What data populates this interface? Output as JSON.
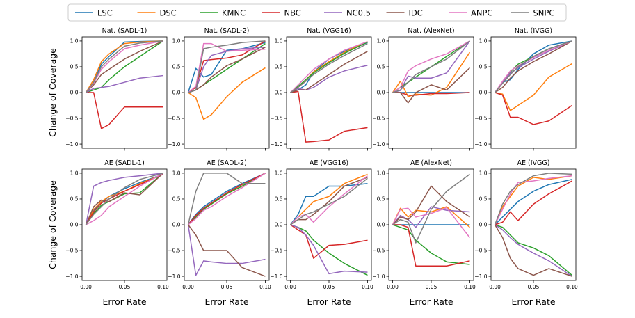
{
  "chart_data": {
    "type": "line",
    "ylabel": "Change of Coverage",
    "xlabel": "Error Rate",
    "xlim": [
      -0.005,
      0.105
    ],
    "ylim": [
      -1.08,
      1.08
    ],
    "xticks": [
      0.0,
      0.05,
      0.1
    ],
    "xtick_labels": [
      "0.00",
      "0.05",
      "0.10"
    ],
    "yticks": [
      -1.0,
      -0.5,
      0.0,
      0.5,
      1.0
    ],
    "ytick_labels": [
      "−1.0",
      "−0.5",
      "0.0",
      "0.5",
      "1.0"
    ],
    "x": [
      0,
      0.01,
      0.02,
      0.03,
      0.05,
      0.07,
      0.1
    ],
    "legend": [
      {
        "name": "LSC",
        "color": "#1f77b4"
      },
      {
        "name": "DSC",
        "color": "#ff7f0e"
      },
      {
        "name": "KMNC",
        "color": "#2ca02c"
      },
      {
        "name": "NBC",
        "color": "#d62728"
      },
      {
        "name": "NC0.5",
        "color": "#9467bd"
      },
      {
        "name": "IDC",
        "color": "#8c564b"
      },
      {
        "name": "ANPC",
        "color": "#e377c2"
      },
      {
        "name": "SNPC",
        "color": "#7f7f7f"
      }
    ],
    "subplots": [
      {
        "title": "Nat. (SADL-1)",
        "series": {
          "LSC": [
            0,
            0.2,
            0.55,
            0.7,
            0.98,
            0.99,
            1.0
          ],
          "DSC": [
            0,
            0.25,
            0.6,
            0.75,
            0.95,
            0.98,
            1.0
          ],
          "KMNC": [
            0,
            0.05,
            0.1,
            0.25,
            0.5,
            0.7,
            1.0
          ],
          "NBC": [
            0,
            0,
            -0.7,
            -0.62,
            -0.28,
            -0.28,
            -0.28
          ],
          "NC0.5": [
            0,
            0.08,
            0.1,
            0.12,
            0.2,
            0.28,
            0.33
          ],
          "IDC": [
            0,
            0.15,
            0.35,
            0.45,
            0.65,
            0.8,
            1.0
          ],
          "ANPC": [
            0,
            0.18,
            0.45,
            0.6,
            0.85,
            0.92,
            1.0
          ],
          "SNPC": [
            0,
            0.2,
            0.5,
            0.65,
            0.9,
            0.96,
            1.0
          ]
        }
      },
      {
        "title": "Nat. (SADL-2)",
        "series": {
          "LSC": [
            0,
            0.47,
            0.3,
            0.35,
            0.82,
            0.85,
            0.97
          ],
          "DSC": [
            0,
            -0.1,
            -0.52,
            -0.43,
            -0.08,
            0.2,
            0.48
          ],
          "KMNC": [
            0,
            0.05,
            0.15,
            0.25,
            0.45,
            0.65,
            0.95
          ],
          "NBC": [
            0,
            0.1,
            0.62,
            0.64,
            0.67,
            0.73,
            1.0
          ],
          "NC0.5": [
            0,
            0.05,
            0.5,
            0.72,
            0.8,
            0.85,
            0.88
          ],
          "IDC": [
            0,
            0.05,
            0.15,
            0.3,
            0.52,
            0.65,
            0.88
          ],
          "ANPC": [
            0,
            0.12,
            0.95,
            0.95,
            0.8,
            0.82,
            0.84
          ],
          "SNPC": [
            0,
            0.05,
            0.85,
            0.88,
            0.92,
            0.97,
            1.0
          ]
        }
      },
      {
        "title": "Nat. (VGG16)",
        "series": {
          "LSC": [
            0,
            0.05,
            0.15,
            0.4,
            0.65,
            0.8,
            0.97
          ],
          "DSC": [
            0,
            0.1,
            0.25,
            0.4,
            0.6,
            0.78,
            0.99
          ],
          "KMNC": [
            0,
            0.12,
            0.25,
            0.38,
            0.58,
            0.76,
            0.98
          ],
          "NBC": [
            0,
            0.02,
            -0.96,
            -0.95,
            -0.92,
            -0.75,
            -0.68
          ],
          "NC0.5": [
            0,
            0.08,
            0.05,
            0.1,
            0.3,
            0.42,
            0.53
          ],
          "IDC": [
            0,
            0.05,
            0.05,
            0.15,
            0.35,
            0.55,
            0.8
          ],
          "ANPC": [
            0,
            0.15,
            0.3,
            0.45,
            0.65,
            0.82,
            0.99
          ],
          "SNPC": [
            0,
            0.1,
            0.22,
            0.35,
            0.55,
            0.72,
            0.95
          ]
        }
      },
      {
        "title": "Nat. (AlexNet)",
        "series": {
          "LSC": [
            0,
            0,
            0,
            0,
            0,
            0,
            0
          ],
          "DSC": [
            0,
            0.22,
            -0.08,
            -0.03,
            -0.05,
            0.1,
            0.78
          ],
          "KMNC": [
            0,
            0.1,
            0.2,
            0.3,
            0.5,
            0.7,
            1.0
          ],
          "NBC": [
            0,
            0,
            -0.05,
            -0.05,
            -0.02,
            -0.02,
            0
          ],
          "NC0.5": [
            0,
            0.04,
            0.32,
            0.28,
            0.28,
            0.38,
            1.0
          ],
          "IDC": [
            0,
            0,
            -0.2,
            0,
            0.15,
            0.05,
            0.48
          ],
          "ANPC": [
            0,
            0.1,
            0.42,
            0.52,
            0.65,
            0.75,
            1.0
          ],
          "SNPC": [
            0,
            0.05,
            0.2,
            0.35,
            0.5,
            0.65,
            1.0
          ]
        }
      },
      {
        "title": "Nat. (IVGG)",
        "series": {
          "LSC": [
            0,
            0.2,
            0.25,
            0.45,
            0.75,
            0.92,
            1.0
          ],
          "DSC": [
            0,
            -0.03,
            -0.35,
            -0.25,
            -0.05,
            0.3,
            0.56
          ],
          "KMNC": [
            0,
            0.2,
            0.4,
            0.55,
            0.7,
            0.85,
            1.0
          ],
          "NBC": [
            0,
            -0.05,
            -0.48,
            -0.48,
            -0.62,
            -0.55,
            -0.25
          ],
          "NC0.5": [
            0,
            0.2,
            0.38,
            0.48,
            0.65,
            0.8,
            1.0
          ],
          "IDC": [
            0,
            0.1,
            0.28,
            0.42,
            0.6,
            0.75,
            1.0
          ],
          "ANPC": [
            0,
            0.22,
            0.42,
            0.52,
            0.68,
            0.82,
            1.0
          ],
          "SNPC": [
            0,
            0.18,
            0.35,
            0.5,
            0.7,
            0.85,
            1.0
          ]
        }
      },
      {
        "title": "AE (SADL-1)",
        "series": {
          "LSC": [
            0,
            0.28,
            0.42,
            0.55,
            0.7,
            0.82,
            0.98
          ],
          "DSC": [
            0,
            0.3,
            0.45,
            0.55,
            0.65,
            0.8,
            0.98
          ],
          "KMNC": [
            0,
            0.22,
            0.38,
            0.45,
            0.6,
            0.62,
            1.0
          ],
          "NBC": [
            0,
            0.25,
            0.42,
            0.5,
            0.65,
            0.78,
            0.98
          ],
          "NC0.5": [
            0,
            0.75,
            0.82,
            0.86,
            0.92,
            0.95,
            1.0
          ],
          "IDC": [
            0,
            0.35,
            0.48,
            0.45,
            0.62,
            0.58,
            1.0
          ],
          "ANPC": [
            0,
            0.08,
            0.18,
            0.35,
            0.55,
            0.75,
            1.0
          ],
          "SNPC": [
            0,
            0.2,
            0.35,
            0.5,
            0.72,
            0.88,
            1.0
          ]
        }
      },
      {
        "title": "AE (SADL-2)",
        "series": {
          "LSC": [
            0,
            0.2,
            0.35,
            0.45,
            0.65,
            0.8,
            1.0
          ],
          "DSC": [
            0,
            0.15,
            0.3,
            0.4,
            0.6,
            0.75,
            1.0
          ],
          "KMNC": [
            0,
            0.15,
            0.3,
            0.4,
            0.6,
            0.75,
            1.0
          ],
          "NBC": [
            0,
            0.18,
            0.32,
            0.42,
            0.62,
            0.78,
            1.0
          ],
          "NC0.5": [
            0,
            -0.98,
            -0.7,
            -0.72,
            -0.75,
            -0.75,
            -0.67
          ],
          "IDC": [
            0,
            -0.2,
            -0.5,
            -0.5,
            -0.5,
            -0.83,
            -1.0
          ],
          "ANPC": [
            0,
            0.12,
            0.28,
            0.35,
            0.55,
            0.72,
            1.0
          ],
          "SNPC": [
            0,
            0.65,
            1.0,
            1.0,
            1.0,
            0.8,
            0.8
          ]
        }
      },
      {
        "title": "AE (VGG16)",
        "series": {
          "LSC": [
            0,
            0.2,
            0.55,
            0.55,
            0.75,
            0.75,
            0.8
          ],
          "DSC": [
            0,
            0.15,
            0.3,
            0.45,
            0.55,
            0.8,
            0.98
          ],
          "KMNC": [
            0,
            -0.05,
            -0.12,
            -0.3,
            -0.55,
            -0.75,
            -0.98
          ],
          "NBC": [
            0,
            -0.1,
            -0.2,
            -0.65,
            -0.4,
            -0.38,
            -0.3
          ],
          "NC0.5": [
            0,
            -0.05,
            -0.2,
            -0.4,
            -0.95,
            -0.9,
            -0.92
          ],
          "IDC": [
            0,
            0.1,
            0.1,
            0.2,
            0.45,
            0.75,
            0.92
          ],
          "ANPC": [
            0,
            0.15,
            0.2,
            0.05,
            0.35,
            0.6,
            0.95
          ],
          "SNPC": [
            0,
            0.1,
            0.2,
            0.25,
            0.4,
            0.55,
            0.9
          ]
        }
      },
      {
        "title": "AE (AlexNet)",
        "series": {
          "LSC": [
            0,
            0,
            0,
            0,
            0,
            0,
            0
          ],
          "DSC": [
            0,
            0.32,
            0.15,
            0.28,
            0.25,
            0.35,
            -0.05
          ],
          "KMNC": [
            0,
            -0.05,
            -0.1,
            -0.3,
            -0.55,
            -0.72,
            -0.77
          ],
          "NBC": [
            0,
            0,
            -0.05,
            -0.8,
            -0.8,
            -0.8,
            -0.7
          ],
          "NC0.5": [
            0,
            0.18,
            0.1,
            -0.05,
            0.35,
            0.28,
            0.25
          ],
          "IDC": [
            0,
            0.15,
            0.1,
            0.25,
            0.75,
            0.45,
            0.15
          ],
          "ANPC": [
            0,
            0.3,
            0.32,
            0.15,
            0.22,
            0.33,
            -0.25
          ],
          "SNPC": [
            0,
            0.1,
            0.05,
            -0.35,
            0.3,
            0.65,
            0.98
          ]
        }
      },
      {
        "title": "AE (IVGG)",
        "series": {
          "LSC": [
            0,
            0.15,
            0.3,
            0.45,
            0.65,
            0.78,
            0.88
          ],
          "DSC": [
            0,
            0.35,
            0.55,
            0.75,
            0.92,
            0.88,
            0.95
          ],
          "KMNC": [
            0,
            -0.05,
            -0.2,
            -0.35,
            -0.45,
            -0.6,
            -0.98
          ],
          "NBC": [
            0,
            0.05,
            0.25,
            0.08,
            0.4,
            0.6,
            0.85
          ],
          "NC0.5": [
            0,
            -0.1,
            -0.25,
            -0.38,
            -0.55,
            -0.7,
            -1.0
          ],
          "IDC": [
            0,
            -0.25,
            -0.65,
            -0.85,
            -0.98,
            -0.85,
            -1.0
          ],
          "ANPC": [
            0,
            0.3,
            0.6,
            0.82,
            0.85,
            0.9,
            0.95
          ],
          "SNPC": [
            0,
            0.4,
            0.65,
            0.78,
            0.95,
            1.0,
            0.98
          ]
        }
      }
    ]
  }
}
